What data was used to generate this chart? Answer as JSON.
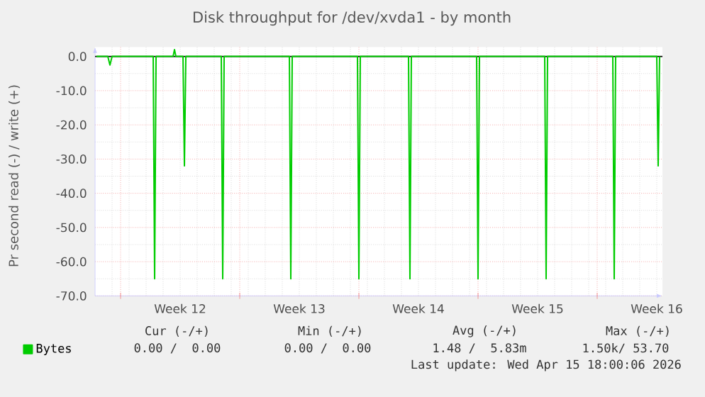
{
  "chart_data": {
    "type": "line",
    "title": "Disk throughput for /dev/xvda1 - by month",
    "ylabel": "Pr second read (-) / write (+)",
    "xlim": [
      "2026-03-14T12:00",
      "2026-04-16T20:00"
    ],
    "ylim": [
      -70,
      2.7
    ],
    "xticks": [
      {
        "value": "2026-03-16",
        "label": null
      },
      {
        "value": "2026-03-23",
        "label": null
      },
      {
        "value": "2026-03-30",
        "label": null
      },
      {
        "value": "2026-04-06",
        "label": null
      },
      {
        "value": "2026-04-13",
        "label": null
      },
      {
        "value": "2026-03-19T12:00",
        "label": "Week 12"
      },
      {
        "value": "2026-03-26T12:00",
        "label": "Week 13"
      },
      {
        "value": "2026-04-02T12:00",
        "label": "Week 14"
      },
      {
        "value": "2026-04-09T12:00",
        "label": "Week 15"
      },
      {
        "value": "2026-04-16T12:00",
        "label": "Week 16"
      }
    ],
    "yticks": [
      {
        "value": 0,
        "label": "0.0"
      },
      {
        "value": -10,
        "label": "-10.0"
      },
      {
        "value": -20,
        "label": "-20.0"
      },
      {
        "value": -30,
        "label": "-30.0"
      },
      {
        "value": -40,
        "label": "-40.0"
      },
      {
        "value": -50,
        "label": "-50.0"
      },
      {
        "value": -60,
        "label": "-60.0"
      },
      {
        "value": -70,
        "label": "-70.0"
      }
    ],
    "grid": true,
    "legend": "bottom left",
    "ref_lines": [
      {
        "axis": "y",
        "value": 0,
        "color": "#000000"
      }
    ],
    "series": [
      {
        "name": "Bytes",
        "color": "#00cc00",
        "x": [
          "2026-03-14T14:00",
          "2026-03-15T06:00",
          "2026-03-15T09:00",
          "2026-03-15T12:00",
          "2026-03-17T22:00",
          "2026-03-18T00:00",
          "2026-03-18T02:00",
          "2026-03-19T02:00",
          "2026-03-19T04:00",
          "2026-03-19T06:00",
          "2026-03-19T16:00",
          "2026-03-19T18:00",
          "2026-03-19T20:00",
          "2026-03-21T22:00",
          "2026-03-22T00:00",
          "2026-03-22T02:00",
          "2026-03-25T22:00",
          "2026-03-26T00:00",
          "2026-03-26T02:00",
          "2026-03-29T22:00",
          "2026-03-30T00:00",
          "2026-03-30T02:00",
          "2026-04-01T22:00",
          "2026-04-02T00:00",
          "2026-04-02T02:00",
          "2026-04-05T22:00",
          "2026-04-06T00:00",
          "2026-04-06T02:00",
          "2026-04-09T22:00",
          "2026-04-10T00:00",
          "2026-04-10T02:00",
          "2026-04-13T22:00",
          "2026-04-14T00:00",
          "2026-04-14T02:00",
          "2026-04-16T12:00",
          "2026-04-16T14:00",
          "2026-04-16T16:00"
        ],
        "values": [
          0,
          0,
          -2.5,
          0,
          0,
          -65,
          0,
          0,
          2,
          0,
          0,
          -32,
          0,
          0,
          -65,
          0,
          0,
          -65,
          0,
          0,
          -65,
          0,
          0,
          -65,
          0,
          0,
          -65,
          0,
          0,
          -65,
          0,
          0,
          -65,
          0,
          0,
          -32,
          0
        ]
      }
    ],
    "annotations": [
      "Cur (-/+)",
      "Min (-/+)",
      "Avg (-/+)",
      "Max (-/+)",
      "0.00 /  0.00",
      "0.00 /  0.00",
      "1.48 /  5.83m",
      "1.50k/ 53.70",
      "Last update: Wed Apr 15 18:00:06 2026"
    ]
  }
}
